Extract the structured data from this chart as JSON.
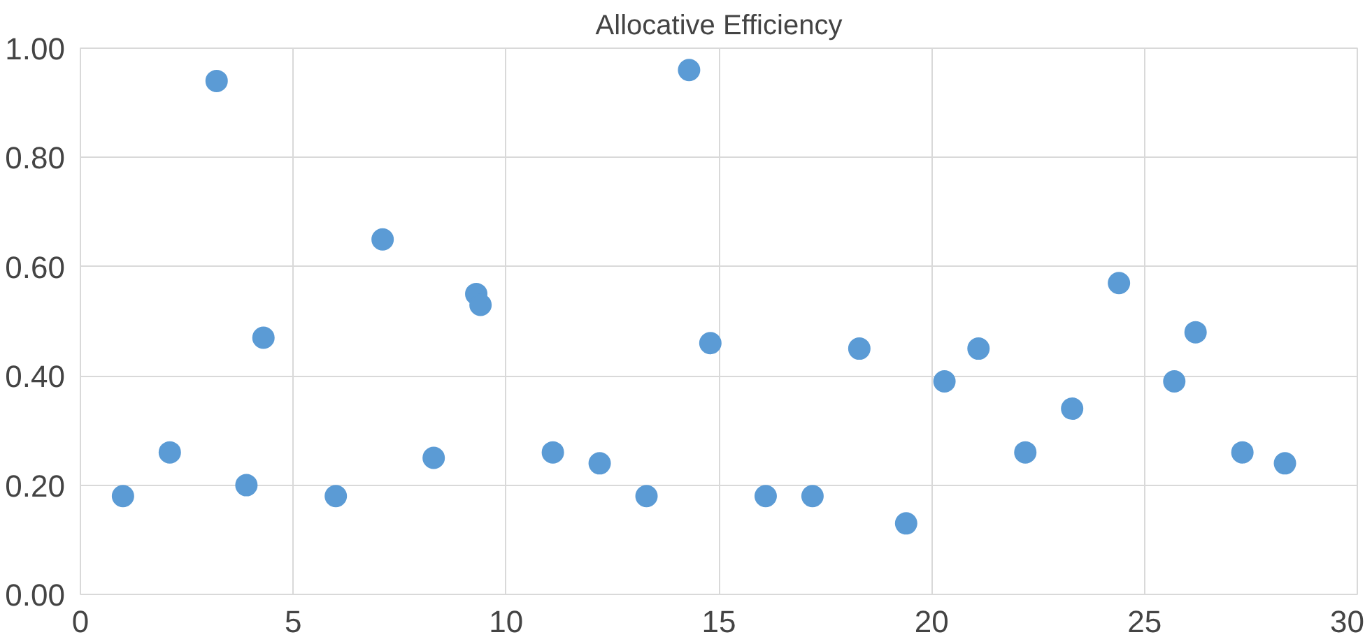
{
  "chart_data": {
    "type": "scatter",
    "title": "Allocative Efficiency",
    "x": [
      1.0,
      2.1,
      3.2,
      3.9,
      4.3,
      6.0,
      7.1,
      8.3,
      9.3,
      9.4,
      11.1,
      12.2,
      13.3,
      14.3,
      14.8,
      16.1,
      17.2,
      18.3,
      19.4,
      20.3,
      21.1,
      22.2,
      23.3,
      24.4,
      25.7,
      26.2,
      27.3,
      28.3
    ],
    "series": [
      {
        "color": "#5b9bd5",
        "values": [
          0.18,
          0.26,
          0.94,
          0.2,
          0.47,
          0.18,
          0.65,
          0.25,
          0.55,
          0.53,
          0.26,
          0.24,
          0.18,
          0.96,
          0.46,
          0.18,
          0.18,
          0.45,
          0.13,
          0.39,
          0.45,
          0.26,
          0.34,
          0.57,
          0.39,
          0.48,
          0.26,
          0.24
        ]
      }
    ],
    "xlim": [
      0,
      30
    ],
    "xticks": [
      0,
      5,
      10,
      15,
      20,
      25,
      30
    ],
    "ylim": [
      0,
      1
    ],
    "yticks": [
      {
        "value": 0,
        "label": "0.00"
      },
      {
        "value": 0.2,
        "label": "0.20"
      },
      {
        "value": 0.4,
        "label": "0.40"
      },
      {
        "value": 0.6,
        "label": "0.60"
      },
      {
        "value": 0.8,
        "label": "0.80"
      },
      {
        "value": 1,
        "label": "1.00"
      }
    ],
    "grid": true,
    "marker": "circle"
  }
}
